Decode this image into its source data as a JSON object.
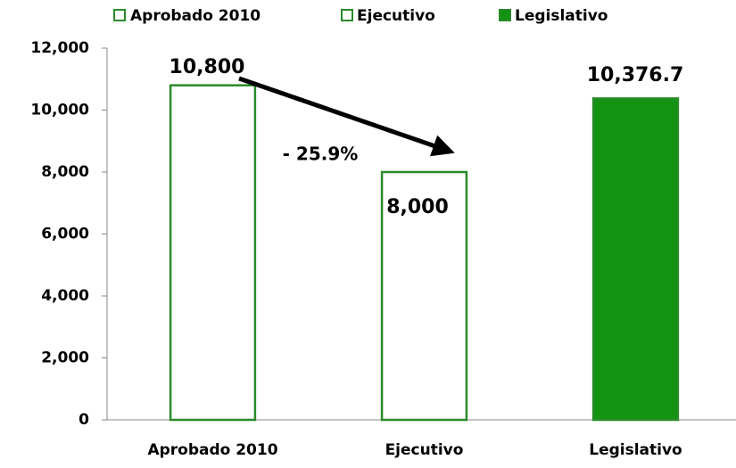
{
  "chart_data": {
    "type": "bar",
    "categories": [
      "Aprobado 2010",
      "Ejecutivo",
      "Legislativo"
    ],
    "values": [
      10800,
      8000,
      10376.7
    ],
    "value_labels": [
      "10,800",
      "8,000",
      "10,376.7"
    ],
    "fills": [
      "#ffffff",
      "#ffffff",
      "#129412"
    ],
    "color": "#2a8a2a",
    "annotation": "- 25.9%",
    "ylim": [
      0,
      12000
    ],
    "yticks": [
      0,
      {
        "value": 2000,
        "label": "2,000"
      },
      {
        "value": 4000,
        "label": "4,000"
      },
      {
        "value": 6000,
        "label": "6,000"
      },
      {
        "value": 8000,
        "label": "8,000"
      },
      {
        "value": 10000,
        "label": "10,000"
      },
      {
        "value": 12000,
        "label": "12,000"
      }
    ],
    "legend": "top"
  }
}
